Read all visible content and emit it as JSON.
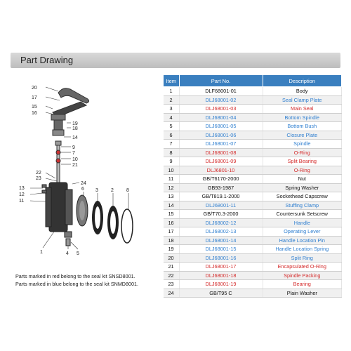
{
  "header": {
    "title": "Part Drawing"
  },
  "table": {
    "headers": [
      "Item",
      "Part No.",
      "Description"
    ],
    "rows": [
      {
        "item": "1",
        "part_no": "DLF68001-01",
        "desc": "Body",
        "color": "black"
      },
      {
        "item": "2",
        "part_no": "DLJ68001-02",
        "desc": "Seal Clamp Plate",
        "color": "blue"
      },
      {
        "item": "3",
        "part_no": "DLJ68001-03",
        "desc": "Main Seal",
        "color": "red"
      },
      {
        "item": "4",
        "part_no": "DLJ68001-04",
        "desc": "Bottom Spindle",
        "color": "blue"
      },
      {
        "item": "5",
        "part_no": "DLJ68001-05",
        "desc": "Bottom Bush",
        "color": "blue"
      },
      {
        "item": "6",
        "part_no": "DLJ68001-06",
        "desc": "Closure Plate",
        "color": "blue"
      },
      {
        "item": "7",
        "part_no": "DLJ68001-07",
        "desc": "Spindle",
        "color": "blue"
      },
      {
        "item": "8",
        "part_no": "DLJ68001-08",
        "desc": "O-Ring",
        "color": "red"
      },
      {
        "item": "9",
        "part_no": "DLJ68001-09",
        "desc": "Split Bearing",
        "color": "red"
      },
      {
        "item": "10",
        "part_no": "DLJ6801-10",
        "desc": "O-Ring",
        "color": "red"
      },
      {
        "item": "11",
        "part_no": "GB/T6170-2000",
        "desc": "Nut",
        "color": "black"
      },
      {
        "item": "12",
        "part_no": "GB93-1987",
        "desc": "Spring Washer",
        "color": "black"
      },
      {
        "item": "13",
        "part_no": "GB/T819.1-2000",
        "desc": "Sockethead Capscrew",
        "color": "black"
      },
      {
        "item": "14",
        "part_no": "DLJ68001-11",
        "desc": "Stuffing Clamp",
        "color": "blue"
      },
      {
        "item": "15",
        "part_no": "GB/T70.3-2000",
        "desc": "Countersunk Setscrew",
        "color": "black"
      },
      {
        "item": "16",
        "part_no": "DLJ68002-12",
        "desc": "Handle",
        "color": "blue"
      },
      {
        "item": "17",
        "part_no": "DLJ68002-13",
        "desc": "Operating Lever",
        "color": "blue"
      },
      {
        "item": "18",
        "part_no": "DLJ68001-14",
        "desc": "Handle Location Pin",
        "color": "blue"
      },
      {
        "item": "19",
        "part_no": "DLJ68001-15",
        "desc": "Handle Location Spring",
        "color": "blue"
      },
      {
        "item": "20",
        "part_no": "DLJ68001-16",
        "desc": "Split Ring",
        "color": "blue"
      },
      {
        "item": "21",
        "part_no": "DLJ68001-17",
        "desc": "Encapsulated O-Ring",
        "color": "red"
      },
      {
        "item": "22",
        "part_no": "DLJ68001-18",
        "desc": "Spindle Packing",
        "color": "red"
      },
      {
        "item": "23",
        "part_no": "DLJ68001-19",
        "desc": "Bearing",
        "color": "red"
      },
      {
        "item": "24",
        "part_no": "GB/T95 C",
        "desc": "Plain Washer",
        "color": "black"
      }
    ]
  },
  "notes": {
    "red": "Parts marked in red  belong to the seal kit SNSD8001.",
    "blue": "Parts marked in blue  belong to the seal kit SNMD8001."
  },
  "callouts": [
    "20",
    "17",
    "15",
    "16",
    "19",
    "18",
    "14",
    "9",
    "7",
    "10",
    "21",
    "22",
    "23",
    "24",
    "13",
    "12",
    "11",
    "6",
    "3",
    "2",
    "8",
    "1",
    "4",
    "5"
  ]
}
